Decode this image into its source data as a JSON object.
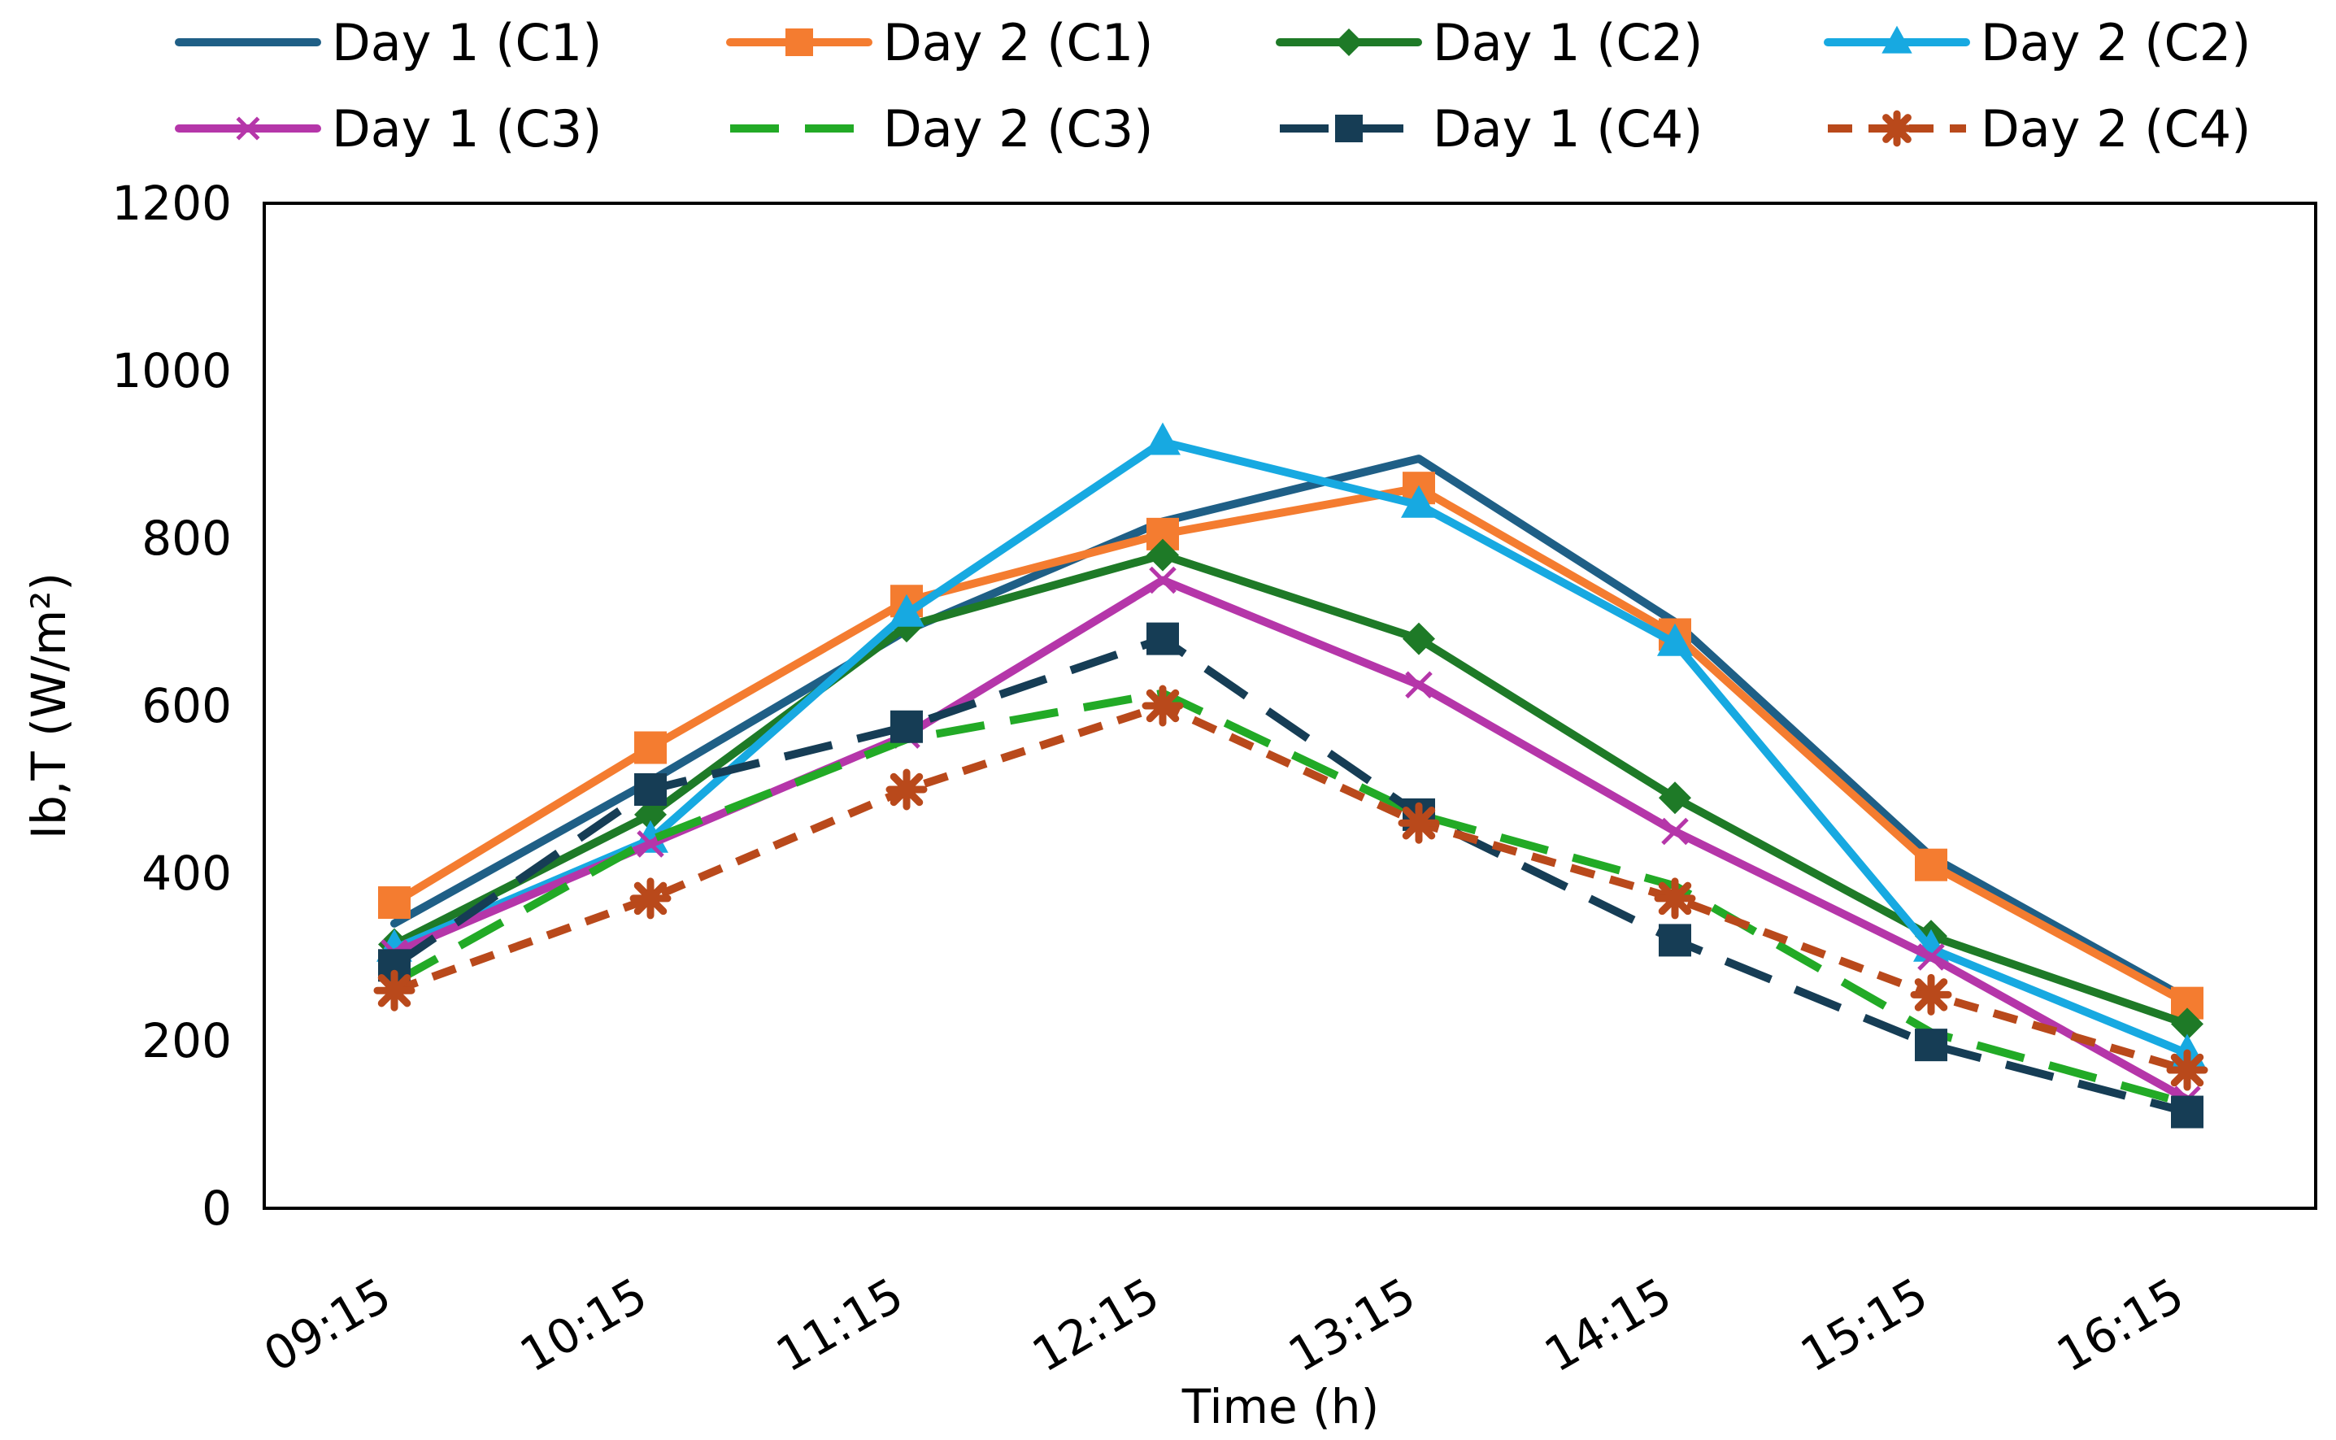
{
  "chart_data": {
    "type": "line",
    "title": "",
    "xlabel": "Time (h)",
    "ylabel": "Ib,T (W/m²)",
    "ylim": [
      0,
      1200
    ],
    "yticks": [
      "0",
      "200",
      "400",
      "600",
      "800",
      "1000",
      "1200"
    ],
    "categories": [
      "09:15",
      "10:15",
      "11:15",
      "12:15",
      "13:15",
      "14:15",
      "15:15",
      "16:15"
    ],
    "grid": false,
    "legend_position": "top",
    "series": [
      {
        "name": "Day 1 (C1)",
        "color": "#1f5f86",
        "dash": "solid",
        "marker": "none",
        "values": [
          340,
          510,
          690,
          820,
          895,
          700,
          420,
          250
        ]
      },
      {
        "name": "Day 2 (C1)",
        "color": "#f47c30",
        "dash": "solid",
        "marker": "square",
        "values": [
          365,
          550,
          725,
          805,
          860,
          685,
          410,
          245
        ]
      },
      {
        "name": "Day 1 (C2)",
        "color": "#1e7a27",
        "dash": "solid",
        "marker": "diamond",
        "values": [
          315,
          470,
          695,
          780,
          680,
          490,
          325,
          220
        ]
      },
      {
        "name": "Day 2 (C2)",
        "color": "#17a9e1",
        "dash": "solid",
        "marker": "triangle",
        "values": [
          310,
          440,
          710,
          915,
          840,
          675,
          310,
          185
        ]
      },
      {
        "name": "Day 1 (C3)",
        "color": "#b536a9",
        "dash": "solid",
        "marker": "x",
        "values": [
          305,
          435,
          565,
          750,
          625,
          450,
          300,
          130
        ]
      },
      {
        "name": "Day 2 (C3)",
        "color": "#22aa26",
        "dash": "dashed",
        "marker": "none",
        "values": [
          270,
          440,
          560,
          615,
          470,
          385,
          210,
          125
        ]
      },
      {
        "name": "Day 1  (C4)",
        "color": "#163d55",
        "dash": "dashed",
        "marker": "square",
        "values": [
          290,
          500,
          575,
          680,
          470,
          320,
          195,
          115
        ]
      },
      {
        "name": "Day 2 (C4)",
        "color": "#b9491b",
        "dash": "dotted",
        "marker": "star",
        "values": [
          260,
          370,
          500,
          600,
          460,
          370,
          255,
          165
        ]
      }
    ]
  }
}
